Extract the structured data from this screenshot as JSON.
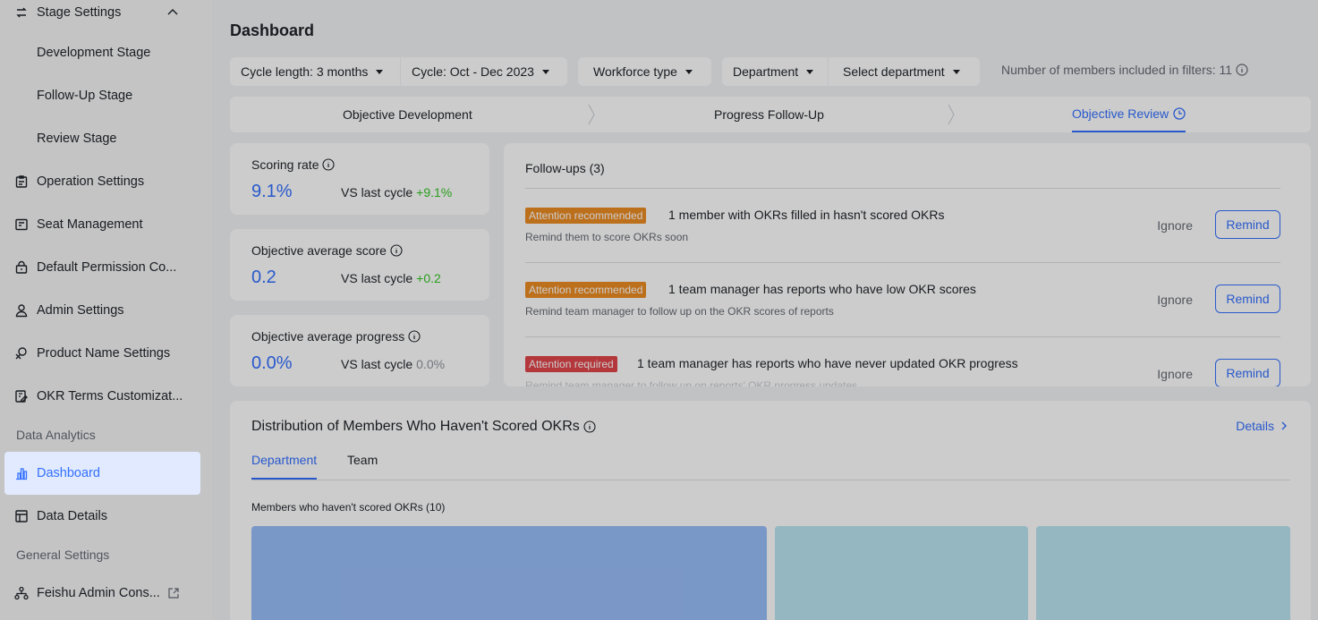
{
  "sidebar": {
    "stage_settings": "Stage Settings",
    "development_stage": "Development Stage",
    "follow_up_stage": "Follow-Up Stage",
    "review_stage": "Review Stage",
    "operation_settings": "Operation Settings",
    "seat_management": "Seat Management",
    "default_permission": "Default Permission Co...",
    "admin_settings": "Admin Settings",
    "product_name_settings": "Product Name Settings",
    "okr_terms": "OKR Terms Customizat...",
    "data_analytics_group": "Data Analytics",
    "dashboard": "Dashboard",
    "data_details": "Data Details",
    "general_settings_group": "General Settings",
    "feishu_admin": "Feishu Admin Cons..."
  },
  "header": {
    "title": "Dashboard"
  },
  "filters": {
    "cycle_length": "Cycle length: 3 months",
    "cycle": "Cycle: Oct - Dec 2023",
    "workforce_type": "Workforce type",
    "department": "Department",
    "select_department": "Select department",
    "member_count": "Number of members included in filters: 11"
  },
  "stepper": {
    "step1": "Objective Development",
    "step2": "Progress Follow-Up",
    "step3": "Objective Review"
  },
  "metrics": {
    "scoring_rate": {
      "title": "Scoring rate",
      "value": "9.1%",
      "vs": "VS last cycle",
      "delta": "+9.1%"
    },
    "avg_score": {
      "title": "Objective average score",
      "value": "0.2",
      "vs": "VS last cycle",
      "delta": "+0.2"
    },
    "avg_progress": {
      "title": "Objective average progress",
      "value": "0.0%",
      "vs": "VS last cycle",
      "delta": "0.0%"
    }
  },
  "followups": {
    "title": "Follow-ups (3)",
    "ignore_label": "Ignore",
    "remind_label": "Remind",
    "items": [
      {
        "tag": "Attention recommended",
        "text": "1 member with OKRs filled in hasn't scored OKRs",
        "sub": "Remind them to score OKRs soon"
      },
      {
        "tag": "Attention recommended",
        "text": "1 team manager has reports who have low OKR scores",
        "sub": "Remind team manager to follow up on the OKR scores of reports"
      },
      {
        "tag": "Attention required",
        "text": "1 team manager has reports who have never updated OKR progress",
        "sub": "Remind team manager to follow up on reports' OKR progress updates"
      }
    ]
  },
  "distribution": {
    "title": "Distribution of Members Who Haven't Scored OKRs",
    "details_label": "Details",
    "tab_department": "Department",
    "tab_team": "Team",
    "caption": "Members who haven't scored OKRs (10)"
  },
  "colors": {
    "accent": "#3370ff",
    "tag_orange": "#ed8c24",
    "tag_red": "#e2454a",
    "positive": "#34c724",
    "treemap_1": "#98bdf9",
    "treemap_2": "#bae5f3"
  }
}
